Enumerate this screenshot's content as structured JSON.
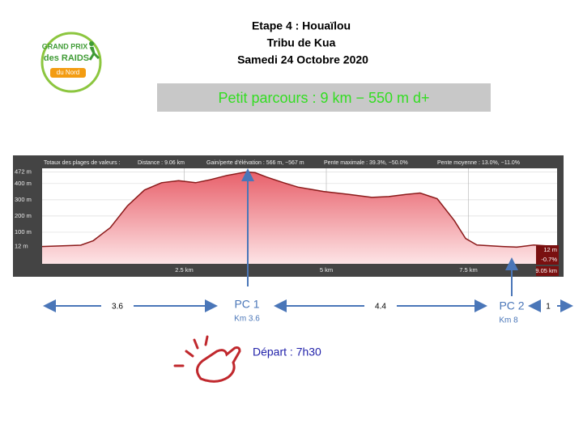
{
  "title": [
    "Etape 4 : Houaïlou",
    "Tribu de Kua",
    "Samedi 24 Octobre 2020"
  ],
  "logo": [
    "GRAND PRIX",
    "des RAIDS",
    "du Nord"
  ],
  "banner": "Petit parcours : 9 km − 550 m d+",
  "chart_data": {
    "type": "area",
    "stats": [
      "Totaux des plages de valeurs :",
      "Distance : 9.06 km",
      "Gain/perte d'élévation : 566 m, −567 m",
      "Pente maximale : 39.3%, −50.0%",
      "Pente moyenne : 13.0%, −11.0%"
    ],
    "x": [
      0,
      0.68,
      0.9,
      1.2,
      1.5,
      1.8,
      2.1,
      2.4,
      2.7,
      2.95,
      3.25,
      3.6,
      3.75,
      3.95,
      4.25,
      4.5,
      4.95,
      5.4,
      5.8,
      6.1,
      6.4,
      6.65,
      6.95,
      7.25,
      7.45,
      7.65,
      8.1,
      8.35,
      8.65,
      9.06
    ],
    "values": [
      12,
      20,
      48,
      128,
      262,
      360,
      405,
      418,
      405,
      423,
      450,
      472,
      467,
      440,
      405,
      378,
      351,
      333,
      315,
      320,
      333,
      342,
      307,
      173,
      61,
      21,
      12,
      8,
      21,
      12
    ],
    "color": "#8b1a1a",
    "xlim": [
      0,
      9.06
    ],
    "ylim": [
      -95,
      494
    ],
    "xticks": [
      {
        "value": 2.5,
        "label": "2.5 km"
      },
      {
        "value": 5,
        "label": "5 km"
      },
      {
        "value": 7.5,
        "label": "7.5 km"
      }
    ],
    "yticks": [
      {
        "value": 12,
        "label": "12 m"
      },
      {
        "value": 100,
        "label": "100 m"
      },
      {
        "value": 200,
        "label": "200 m"
      },
      {
        "value": 300,
        "label": "300 m"
      },
      {
        "value": 400,
        "label": "400 m"
      },
      {
        "value": 472,
        "label": "472 m"
      }
    ],
    "grid": true,
    "readouts": [
      "12 m",
      "-0.7%",
      "9.05 km"
    ]
  },
  "segments": [
    "3.6",
    "4.4",
    "1"
  ],
  "checkpoints": [
    {
      "name": "PC 1",
      "km": "Km 3.6"
    },
    {
      "name": "PC 2",
      "km": "Km 8"
    }
  ],
  "start": "Départ : 7h30"
}
